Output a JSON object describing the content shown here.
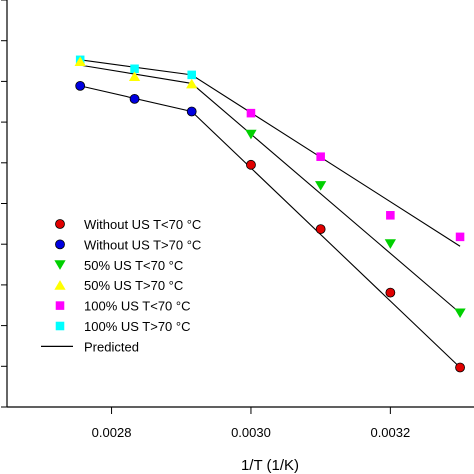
{
  "chart_data": {
    "type": "scatter",
    "title": "",
    "xlabel": "1/T (1/K)",
    "ylabel": "",
    "xlim": [
      0.00265,
      0.00332
    ],
    "ylim": [
      0,
      10
    ],
    "x_ticks": [
      0.0028,
      0.003,
      0.0032
    ],
    "x_tick_labels": [
      "0.0028",
      "0.0030",
      "0.0032"
    ],
    "y_ticks": [
      0,
      1,
      2,
      3,
      4,
      5,
      6,
      7,
      8,
      9,
      10
    ],
    "grid": false,
    "legend_position": "lower-left",
    "series": [
      {
        "name": "Without US T<70 °C",
        "marker": "circle",
        "color": "#e00000",
        "x": [
          0.003,
          0.0031,
          0.0032,
          0.0033
        ],
        "y": [
          5.95,
          4.37,
          2.81,
          0.97
        ]
      },
      {
        "name": "Without US T>70 °C",
        "marker": "circle",
        "color": "#0000e0",
        "x": [
          0.002755,
          0.002833,
          0.002915
        ],
        "y": [
          7.89,
          7.57,
          7.26
        ]
      },
      {
        "name": "50% US T<70 °C",
        "marker": "triangle-down",
        "color": "#00d000",
        "x": [
          0.003,
          0.0031,
          0.0032,
          0.0033
        ],
        "y": [
          6.7,
          5.44,
          4.01,
          2.31
        ]
      },
      {
        "name": "50% US T>70 °C",
        "marker": "triangle-up",
        "color": "#ffff00",
        "x": [
          0.002755,
          0.002833,
          0.002915
        ],
        "y": [
          8.49,
          8.12,
          7.94
        ]
      },
      {
        "name": "100% US T<70 °C",
        "marker": "square",
        "color": "#ff00ff",
        "x": [
          0.003,
          0.0031,
          0.0032,
          0.0033
        ],
        "y": [
          7.22,
          6.15,
          4.71,
          4.18
        ]
      },
      {
        "name": "100% US T>70 °C",
        "marker": "square",
        "color": "#00ffff",
        "x": [
          0.002755,
          0.002833,
          0.002915
        ],
        "y": [
          8.53,
          8.31,
          8.16
        ]
      },
      {
        "name": "Predicted",
        "marker": "line",
        "color": "#000000",
        "lines": [
          {
            "x": [
              0.002755,
              0.002915,
              0.0033
            ],
            "y": [
              7.89,
              7.26,
              0.97
            ]
          },
          {
            "x": [
              0.002755,
              0.002915,
              0.0033
            ],
            "y": [
              8.4,
              7.95,
              2.31
            ]
          },
          {
            "x": [
              0.002755,
              0.002915,
              0.0033
            ],
            "y": [
              8.53,
              8.16,
              3.95
            ]
          }
        ]
      }
    ]
  }
}
